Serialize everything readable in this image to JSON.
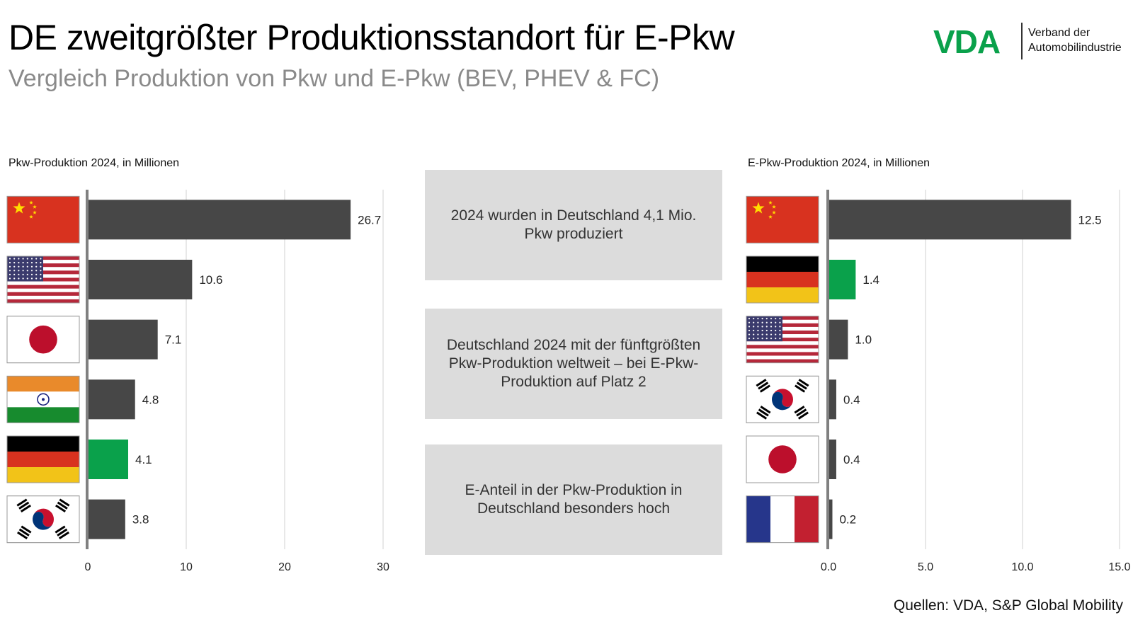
{
  "header": {
    "title": "DE zweitgrößter Produktionsstandort für E-Pkw",
    "subtitle": "Vergleich Produktion von Pkw und E-Pkw (BEV, PHEV & FC)"
  },
  "logo": {
    "mark": "VDA",
    "line1": "Verband der",
    "line2": "Automobilindustrie"
  },
  "info_boxes": [
    "2024 wurden in Deutschland 4,1 Mio. Pkw produziert",
    "Deutschland 2024 mit der fünftgrößten Pkw-Produktion weltweit – bei E-Pkw-Produktion auf Platz 2",
    "E-Anteil in der Pkw-Produktion in Deutschland besonders hoch"
  ],
  "source": "Quellen: VDA, S&P Global Mobility",
  "colors": {
    "bar": "#474747",
    "highlight": "#0aa14b",
    "brand": "#0aa14b"
  },
  "chart_data": [
    {
      "type": "bar",
      "orientation": "horizontal",
      "title": "Pkw-Produktion 2024, in Millionen",
      "categories": [
        "china-flag-icon",
        "usa-flag-icon",
        "japan-flag-icon",
        "india-flag-icon",
        "germany-flag-icon",
        "south-korea-flag-icon"
      ],
      "values": [
        26.7,
        10.6,
        7.1,
        4.8,
        4.1,
        3.8
      ],
      "value_labels": [
        "26.7",
        "10.6",
        "7.1",
        "4.8",
        "4.1",
        "3.8"
      ],
      "highlight_index": 4,
      "xlim": [
        0,
        30
      ],
      "ticks": [
        0,
        10,
        20,
        30
      ],
      "tick_labels": [
        "0",
        "10",
        "20",
        "30"
      ],
      "grid": true
    },
    {
      "type": "bar",
      "orientation": "horizontal",
      "title": "E-Pkw-Produktion 2024, in Millionen",
      "categories": [
        "china-flag-icon",
        "germany-flag-icon",
        "usa-flag-icon",
        "south-korea-flag-icon",
        "japan-flag-icon",
        "france-flag-icon"
      ],
      "values": [
        12.5,
        1.4,
        1.0,
        0.4,
        0.4,
        0.2
      ],
      "value_labels": [
        "12.5",
        "1.4",
        "1.0",
        "0.4",
        "0.4",
        "0.2"
      ],
      "highlight_index": 1,
      "xlim": [
        0,
        15
      ],
      "ticks": [
        0,
        5,
        10,
        15
      ],
      "tick_labels": [
        "0.0",
        "5.0",
        "10.0",
        "15.0"
      ],
      "grid": true
    }
  ]
}
